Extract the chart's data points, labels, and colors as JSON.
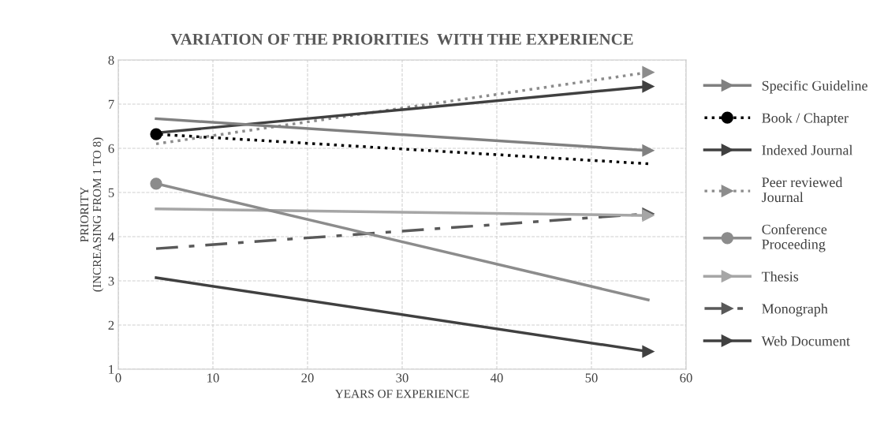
{
  "chart_data": {
    "type": "line",
    "title": "VARIATION OF THE PRIORITIES  WITH THE EXPERIENCE",
    "xlabel": "YEARS OF EXPERIENCE",
    "ylabel": "PRIORITY\n(INCREASING FROM 1 TO 8)",
    "x": [
      4,
      56
    ],
    "xlim": [
      0,
      60
    ],
    "xticks": [
      0,
      10,
      20,
      30,
      40,
      50,
      60
    ],
    "ylim": [
      1,
      8
    ],
    "yticks": [
      1,
      2,
      3,
      4,
      5,
      6,
      7,
      8
    ],
    "grid": true,
    "legend": "right",
    "series": [
      {
        "name": "Specific Guideline",
        "color": "#808080",
        "values": [
          6.67,
          5.95
        ],
        "line_style": "solid",
        "marker": "triangle"
      },
      {
        "name": "Book / Chapter",
        "color": "#000000",
        "values": [
          6.32,
          5.65
        ],
        "line_style": "dotted",
        "marker": "circle"
      },
      {
        "name": "Indexed Journal",
        "color": "#404040",
        "values": [
          6.35,
          7.4
        ],
        "line_style": "solid",
        "marker": "triangle"
      },
      {
        "name": "Peer reviewed\nJournal",
        "color": "#8c8c8c",
        "values": [
          6.1,
          7.72
        ],
        "line_style": "dotted",
        "marker": "triangle"
      },
      {
        "name": "Conference\nProceeding",
        "color": "#8c8c8c",
        "values": [
          5.2,
          2.57
        ],
        "line_style": "solid",
        "marker": "circle"
      },
      {
        "name": "Thesis",
        "color": "#a6a6a6",
        "values": [
          4.63,
          4.48
        ],
        "line_style": "solid",
        "marker": "triangle"
      },
      {
        "name": "Monograph",
        "color": "#595959",
        "values": [
          3.73,
          4.52
        ],
        "line_style": "dashed",
        "marker": "triangle"
      },
      {
        "name": "Web Document",
        "color": "#404040",
        "values": [
          3.07,
          1.4
        ],
        "line_style": "solid",
        "marker": "triangle"
      }
    ]
  }
}
